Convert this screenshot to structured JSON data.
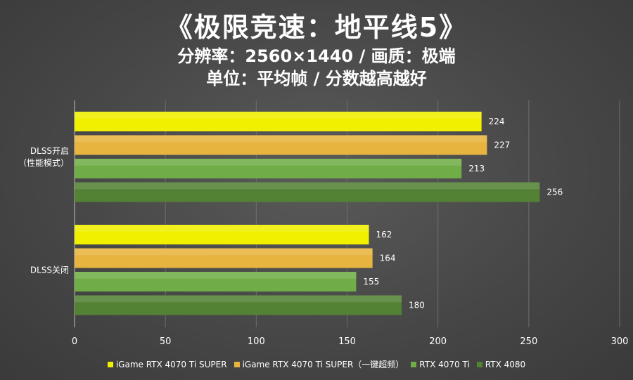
{
  "header": {
    "title": "《极限竞速：地平线5》",
    "subtitle1": "分辨率：2560×1440 / 画质：极端",
    "subtitle2": "单位：平均帧 / 分数越高越好"
  },
  "chart_data": {
    "type": "bar",
    "orientation": "horizontal",
    "categories": [
      "DLSS开启\n（性能模式）",
      "DLSS关闭"
    ],
    "series": [
      {
        "name": "iGame RTX 4070 Ti SUPER",
        "values": [
          224,
          162
        ],
        "color": "#f0f000"
      },
      {
        "name": "iGame RTX 4070 Ti SUPER（一键超频）",
        "values": [
          227,
          164
        ],
        "color": "#e8b440"
      },
      {
        "name": "RTX 4070 Ti",
        "values": [
          213,
          155
        ],
        "color": "#70ad47"
      },
      {
        "name": "RTX 4080",
        "values": [
          256,
          180
        ],
        "color": "#548235"
      }
    ],
    "xlim": [
      0,
      300
    ],
    "xticks": [
      0,
      50,
      100,
      150,
      200,
      250,
      300
    ],
    "grid": true,
    "data_labels": true,
    "legend_position": "bottom"
  }
}
